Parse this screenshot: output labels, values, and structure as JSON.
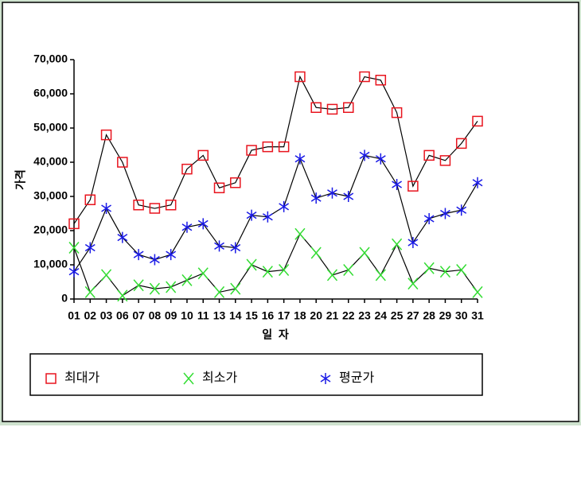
{
  "chart_data": {
    "type": "line",
    "y_label": "가격",
    "x_label": "일  자",
    "categories": [
      "01",
      "02",
      "03",
      "06",
      "07",
      "08",
      "09",
      "10",
      "11",
      "13",
      "14",
      "15",
      "16",
      "17",
      "18",
      "20",
      "21",
      "22",
      "23",
      "24",
      "25",
      "27",
      "28",
      "29",
      "30",
      "31"
    ],
    "series": [
      {
        "name": "최대가",
        "color": "#e8141e",
        "marker": "square",
        "values": [
          22000,
          29000,
          48000,
          40000,
          27500,
          26500,
          27500,
          38000,
          42000,
          32500,
          34000,
          43500,
          44500,
          44500,
          65000,
          56000,
          55500,
          56000,
          65000,
          64000,
          54500,
          33000,
          42000,
          40500,
          45500,
          52000
        ]
      },
      {
        "name": "최소가",
        "color": "#33dd33",
        "marker": "x",
        "values": [
          15000,
          2000,
          7000,
          1000,
          4000,
          3000,
          3500,
          5500,
          7500,
          2000,
          3000,
          10000,
          8000,
          8500,
          19000,
          13500,
          7000,
          8500,
          13500,
          7000,
          16000,
          4500,
          9000,
          8000,
          8500,
          2000
        ]
      },
      {
        "name": "평균가",
        "color": "#1a1ae6",
        "marker": "asterisk",
        "values": [
          8000,
          15000,
          26500,
          18000,
          13000,
          11500,
          13000,
          21000,
          22000,
          15500,
          15000,
          24500,
          24000,
          27000,
          41000,
          29500,
          31000,
          30000,
          42000,
          41000,
          33500,
          16500,
          23500,
          25000,
          26000,
          34000
        ]
      }
    ],
    "line_color": "#000000",
    "ylim": [
      0,
      70000
    ],
    "yticks": [
      0,
      {
        "value": 10000,
        "label": "10,000"
      },
      {
        "value": 20000,
        "label": "20,000"
      },
      {
        "value": 30000,
        "label": "30,000"
      },
      {
        "value": 40000,
        "label": "40,000"
      },
      {
        "value": 50000,
        "label": "50,000"
      },
      {
        "value": 60000,
        "label": "60,000"
      },
      {
        "value": 70000,
        "label": "70,000"
      }
    ],
    "grid": false
  }
}
